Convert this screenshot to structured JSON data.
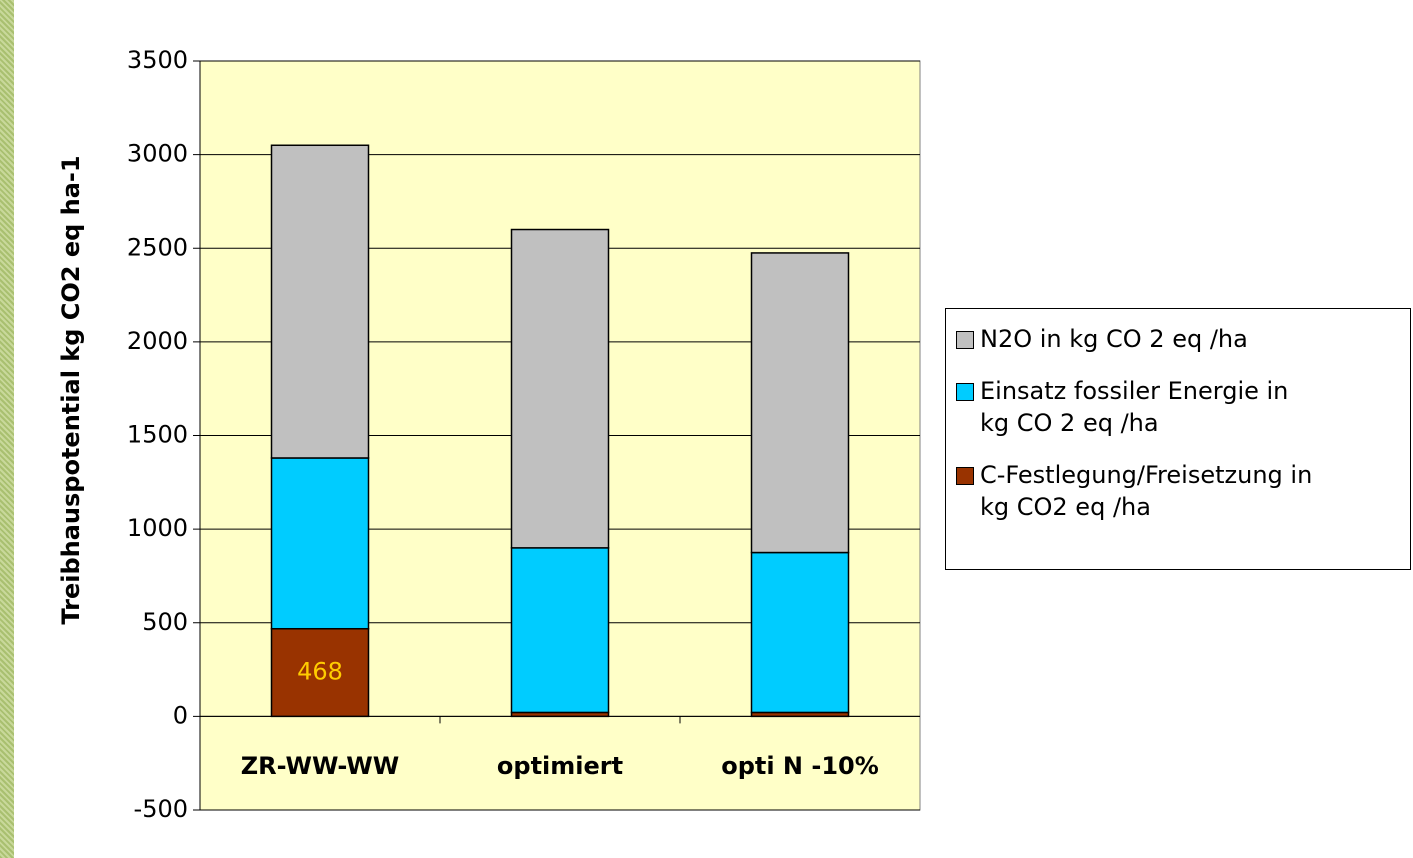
{
  "chart_data": {
    "type": "stacked_bar",
    "y_axis_label": "Treibhauspotential kg CO2 eq ha-1",
    "categories": [
      "ZR-WW-WW",
      "optimiert",
      "opti N -10%"
    ],
    "series": [
      {
        "name": "C-Festlegung/Freisetzung in kg CO2 eq /ha",
        "color": "#993300",
        "values": [
          468,
          21,
          21
        ]
      },
      {
        "name": "Einsatz fossiler Energie in kg CO 2 eq /ha",
        "color": "#00ccff",
        "values": [
          912,
          879,
          854
        ]
      },
      {
        "name": "N2O in kg CO 2 eq /ha",
        "color": "#c0c0c0",
        "values": [
          1670,
          1700,
          1600
        ]
      }
    ],
    "data_labels_color": "#ffcc00",
    "ylim": [
      -500,
      3500
    ],
    "yticks": [
      -500,
      0,
      500,
      1000,
      1500,
      2000,
      2500,
      3000,
      3500
    ],
    "grid": true,
    "legend": "right"
  }
}
